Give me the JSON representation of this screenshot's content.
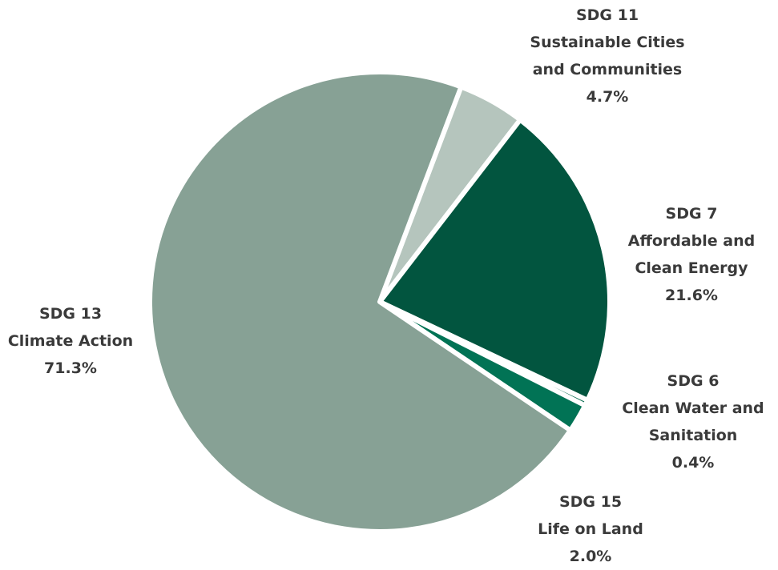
{
  "chart_data": {
    "type": "pie",
    "slices": [
      {
        "code": "SDG 11",
        "name": "Sustainable Cities and Communities",
        "name_lines": [
          "Sustainable Cities",
          "and Communities"
        ],
        "value": 4.7,
        "label": "4.7%",
        "color": "#b5c5bd"
      },
      {
        "code": "SDG 7",
        "name": "Affordable and Clean Energy",
        "name_lines": [
          "Affordable and",
          "Clean Energy"
        ],
        "value": 21.6,
        "label": "21.6%",
        "color": "#02553f"
      },
      {
        "code": "SDG 6",
        "name": "Clean Water and Sanitation",
        "name_lines": [
          "Clean Water and",
          "Sanitation"
        ],
        "value": 0.4,
        "label": "0.4%",
        "color": "#05694d"
      },
      {
        "code": "SDG 15",
        "name": "Life on Land",
        "name_lines": [
          "Life on Land"
        ],
        "value": 2.0,
        "label": "2.0%",
        "color": "#017355"
      },
      {
        "code": "SDG 13",
        "name": "Climate Action",
        "name_lines": [
          "Climate Action"
        ],
        "value": 71.3,
        "label": "71.3%",
        "color": "#87a195"
      }
    ],
    "legend": "none"
  }
}
